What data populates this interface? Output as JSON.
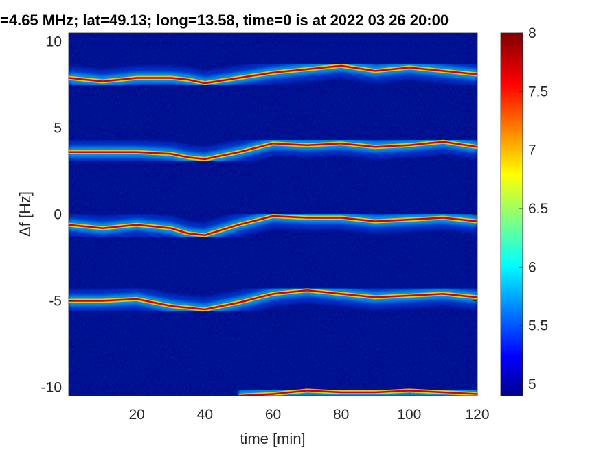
{
  "chart_data": {
    "type": "heatmap",
    "title": "=4.65 MHz;  lat=49.13; long=13.58, time=0 is at 2022 03 26 20:00",
    "xlabel": "time [min]",
    "ylabel": "Δf [Hz]",
    "xlim": [
      0,
      120
    ],
    "ylim": [
      -10.5,
      10.5
    ],
    "xticks": [
      20,
      40,
      60,
      80,
      100,
      120
    ],
    "xtick_labels": [
      "20",
      "40",
      "60",
      "80",
      "100",
      "120"
    ],
    "yticks": [
      -10,
      -5,
      0,
      5,
      10
    ],
    "ytick_labels": [
      "-10",
      "-5",
      "0",
      "5",
      "10"
    ],
    "colorbar": {
      "colormap": "jet",
      "clim": [
        4.9,
        8
      ],
      "ticks": [
        5,
        5.5,
        6,
        6.5,
        7,
        7.5,
        8
      ],
      "tick_labels": [
        "5",
        "5.5",
        "6",
        "6.5",
        "7",
        "7.5",
        "8"
      ]
    },
    "background_color": "#00008b",
    "grid": false,
    "series": [
      {
        "x": [
          0,
          10,
          20,
          30,
          35,
          40,
          50,
          60,
          70,
          80,
          90,
          100,
          110,
          120
        ],
        "y": [
          7.9,
          7.7,
          7.9,
          7.9,
          7.8,
          7.6,
          7.9,
          8.2,
          8.4,
          8.6,
          8.3,
          8.5,
          8.3,
          8.1
        ]
      },
      {
        "x": [
          0,
          10,
          20,
          30,
          35,
          40,
          50,
          60,
          70,
          80,
          90,
          100,
          110,
          120
        ],
        "y": [
          3.6,
          3.6,
          3.6,
          3.5,
          3.3,
          3.2,
          3.6,
          4.1,
          4.0,
          4.1,
          3.9,
          4.0,
          4.2,
          3.9
        ]
      },
      {
        "x": [
          0,
          10,
          20,
          30,
          35,
          40,
          50,
          60,
          70,
          80,
          90,
          100,
          110,
          120
        ],
        "y": [
          -0.6,
          -0.8,
          -0.6,
          -0.8,
          -1.1,
          -1.2,
          -0.6,
          -0.1,
          -0.2,
          -0.2,
          -0.4,
          -0.3,
          -0.2,
          -0.4
        ]
      },
      {
        "x": [
          0,
          10,
          20,
          30,
          35,
          40,
          50,
          60,
          70,
          80,
          90,
          100,
          110,
          120
        ],
        "y": [
          -5.0,
          -5.0,
          -4.9,
          -5.3,
          -5.4,
          -5.5,
          -5.1,
          -4.6,
          -4.4,
          -4.6,
          -4.8,
          -4.7,
          -4.6,
          -4.8
        ]
      },
      {
        "x": [
          50,
          60,
          70,
          80,
          90,
          100,
          110,
          120
        ],
        "y": [
          -10.5,
          -10.4,
          -10.2,
          -10.3,
          -10.3,
          -10.2,
          -10.3,
          -10.4
        ]
      }
    ]
  }
}
